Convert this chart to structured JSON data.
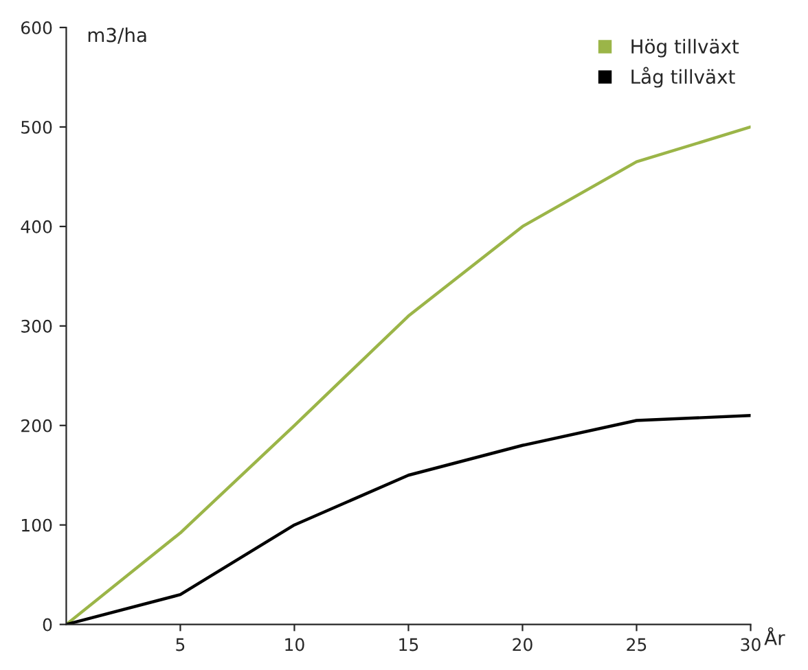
{
  "chart_data": {
    "type": "line",
    "xlabel": "År",
    "ylabel": "m3/ha",
    "x": [
      0,
      5,
      10,
      15,
      20,
      25,
      30
    ],
    "series": [
      {
        "name": "Hög tillväxt",
        "color": "#9bb548",
        "values": [
          0,
          92,
          200,
          310,
          400,
          465,
          500
        ]
      },
      {
        "name": "Låg tillväxt",
        "color": "#000000",
        "values": [
          0,
          30,
          100,
          150,
          180,
          205,
          210
        ]
      }
    ],
    "xlim": [
      0,
      30
    ],
    "xticks": [
      5,
      10,
      15,
      20,
      25,
      30
    ],
    "ylim": [
      0,
      600
    ],
    "yticks": [
      0,
      100,
      200,
      300,
      400,
      500,
      600
    ],
    "grid": false,
    "legend": "top right",
    "marker": "none",
    "line_style": "solid"
  }
}
